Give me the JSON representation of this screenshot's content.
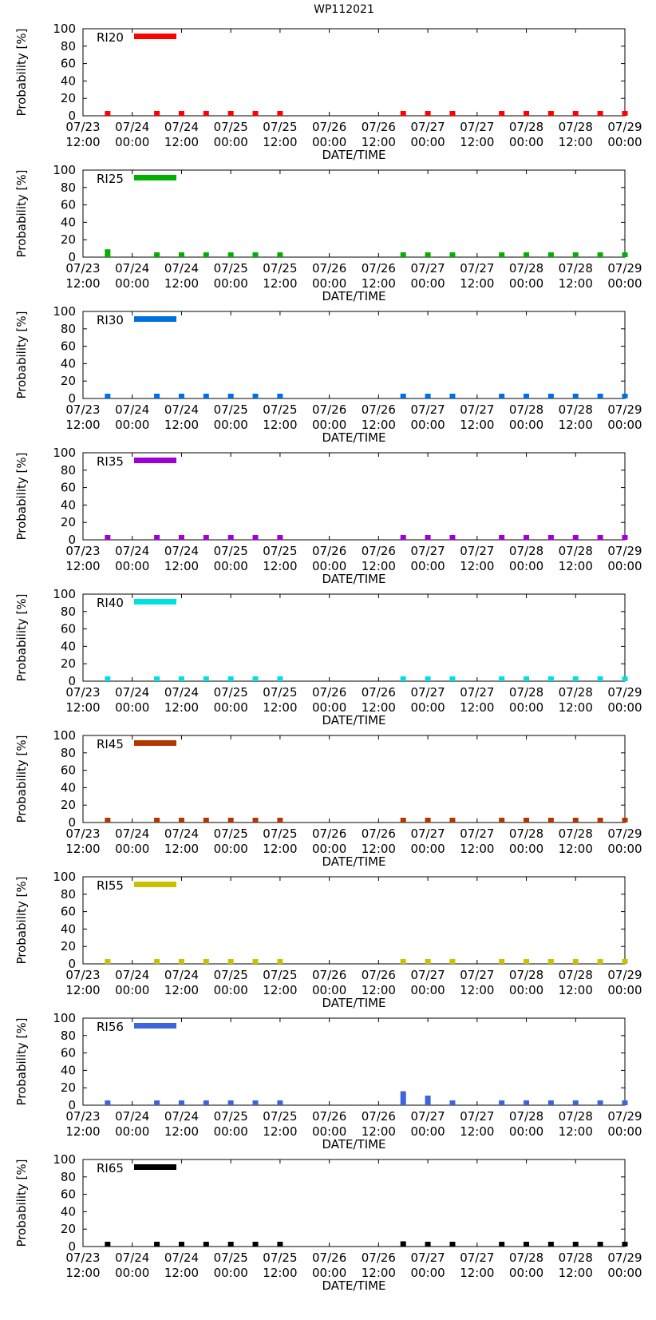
{
  "figure_title": "WP112021",
  "chart_data": {
    "type": "bar",
    "title": "WP112021",
    "xlabel": "DATE/TIME",
    "ylabel": "Probability [%]",
    "ylim": [
      0,
      100
    ],
    "yticks": [
      0,
      20,
      40,
      60,
      80,
      100
    ],
    "xlim_hours": [
      0,
      132
    ],
    "xticks": [
      {
        "hours": 0,
        "date": "07/23",
        "time": "12:00"
      },
      {
        "hours": 12,
        "date": "07/24",
        "time": "00:00"
      },
      {
        "hours": 24,
        "date": "07/24",
        "time": "12:00"
      },
      {
        "hours": 36,
        "date": "07/25",
        "time": "00:00"
      },
      {
        "hours": 48,
        "date": "07/25",
        "time": "12:00"
      },
      {
        "hours": 60,
        "date": "07/26",
        "time": "00:00"
      },
      {
        "hours": 72,
        "date": "07/26",
        "time": "12:00"
      },
      {
        "hours": 84,
        "date": "07/27",
        "time": "00:00"
      },
      {
        "hours": 96,
        "date": "07/27",
        "time": "12:00"
      },
      {
        "hours": 108,
        "date": "07/28",
        "time": "00:00"
      },
      {
        "hours": 120,
        "date": "07/28",
        "time": "12:00"
      },
      {
        "hours": 132,
        "date": "07/29",
        "time": "00:00"
      }
    ],
    "x_hours": [
      6,
      18,
      24,
      30,
      36,
      42,
      48,
      78,
      84,
      90,
      102,
      108,
      114,
      120,
      126,
      132
    ],
    "panels": [
      {
        "name": "RI20",
        "color": "#ff0000",
        "values": [
          3,
          1,
          1,
          1,
          1,
          1,
          1,
          3,
          2,
          3,
          1,
          1,
          1,
          1,
          1,
          1
        ]
      },
      {
        "name": "RI25",
        "color": "#00b000",
        "values": [
          9,
          2,
          2,
          1,
          1,
          1,
          1,
          2,
          2,
          1,
          1,
          1,
          1,
          1,
          1,
          1
        ]
      },
      {
        "name": "RI30",
        "color": "#0070e0",
        "values": [
          3,
          1,
          1,
          1,
          1,
          1,
          1,
          2,
          1,
          1,
          1,
          1,
          1,
          1,
          1,
          1
        ]
      },
      {
        "name": "RI35",
        "color": "#a000d8",
        "values": [
          3,
          1,
          1,
          1,
          1,
          1,
          1,
          1,
          1,
          1,
          1,
          1,
          1,
          1,
          1,
          1
        ]
      },
      {
        "name": "RI40",
        "color": "#00e0e0",
        "values": [
          2,
          1,
          1,
          1,
          1,
          1,
          1,
          1,
          1,
          1,
          1,
          1,
          1,
          1,
          1,
          1
        ]
      },
      {
        "name": "RI45",
        "color": "#b03800",
        "values": [
          4,
          2,
          1,
          1,
          1,
          1,
          1,
          3,
          3,
          3,
          1,
          1,
          1,
          1,
          1,
          1
        ]
      },
      {
        "name": "RI55",
        "color": "#c8c000",
        "values": [
          2,
          1,
          1,
          1,
          1,
          1,
          1,
          2,
          2,
          2,
          1,
          1,
          1,
          1,
          1,
          1
        ]
      },
      {
        "name": "RI56",
        "color": "#3c64dc",
        "values": [
          1,
          1,
          1,
          1,
          1,
          1,
          1,
          16,
          11,
          1,
          1,
          2,
          1,
          1,
          1,
          1
        ]
      },
      {
        "name": "RI65",
        "color": "#000000",
        "values": [
          3,
          1,
          1,
          1,
          1,
          1,
          1,
          6,
          3,
          2,
          1,
          1,
          1,
          1,
          2,
          1
        ]
      }
    ]
  }
}
